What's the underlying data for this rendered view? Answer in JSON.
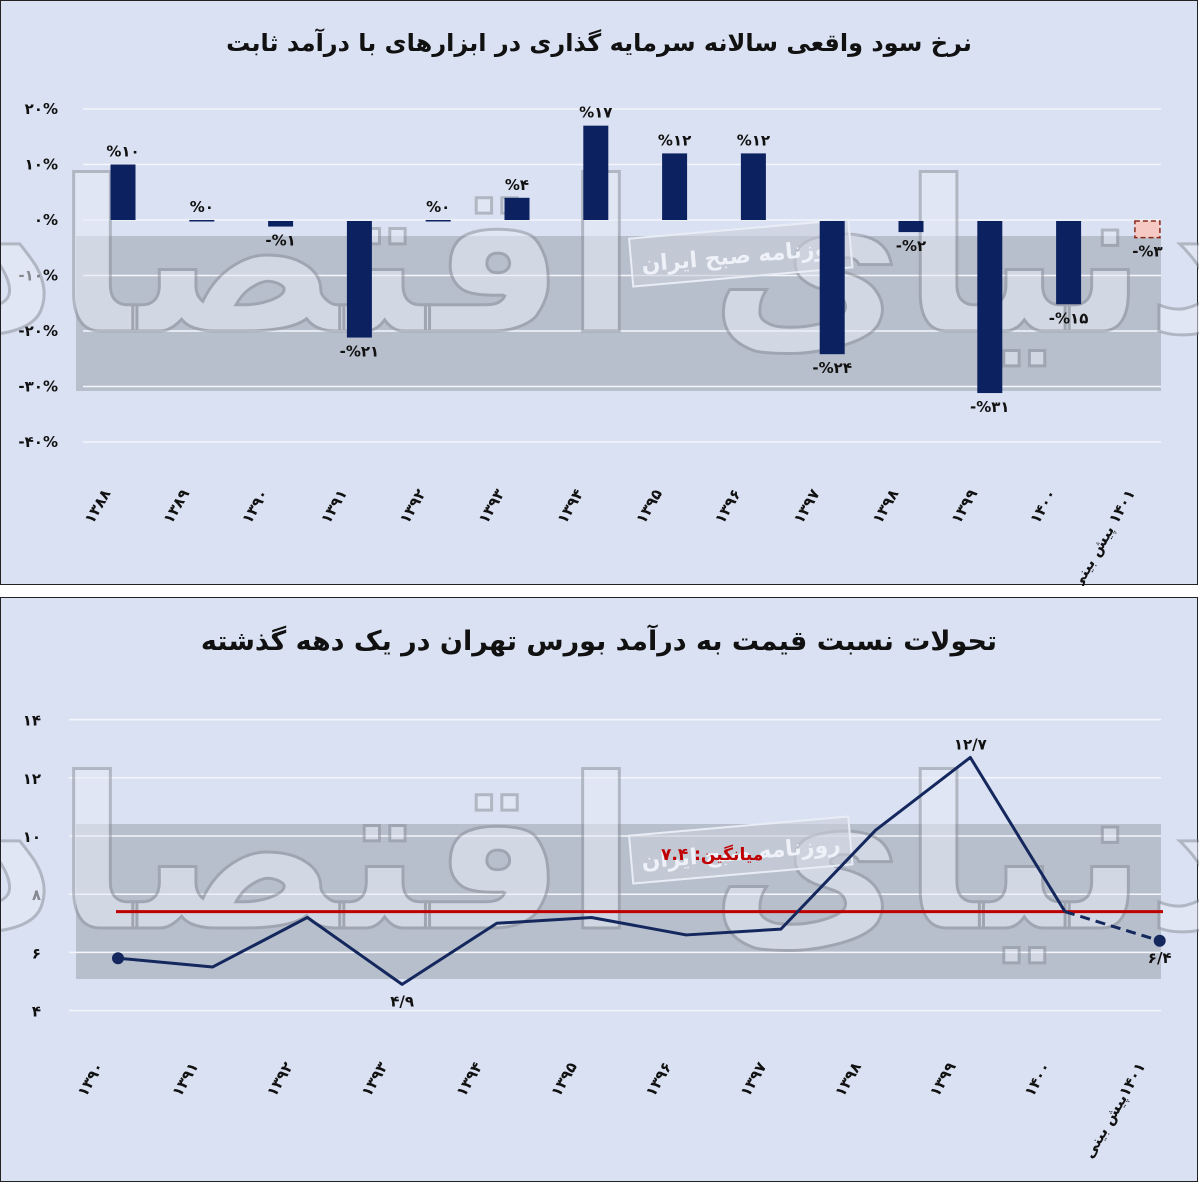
{
  "watermark": {
    "logo_text": "دنیای اقتصاد",
    "stamp_text": "روزنامه صبح ایران"
  },
  "colors": {
    "panel_bg": "#dae1f2",
    "bar": "#0c2160",
    "forecast_bar_fill": "#f7c9c4",
    "forecast_bar_border": "#8b2a1a",
    "line": "#14285e",
    "average_line": "#c00000",
    "shade_band": "#b8bfcc"
  },
  "chart_data": [
    {
      "type": "bar",
      "title": "نرخ سود واقعی سالانه سرمایه گذاری در ابزارهای با درآمد ثابت",
      "xlabel": "",
      "ylabel": "",
      "ylim": [
        -40,
        20
      ],
      "grid": true,
      "yticks": [
        "۲۰%",
        "۱۰%",
        "۰%",
        "-۱۰%",
        "-۲۰%",
        "-۳۰%",
        "-۴۰%"
      ],
      "ytick_values": [
        20,
        10,
        0,
        -10,
        -20,
        -30,
        -40
      ],
      "categories": [
        "۱۳۸۸",
        "۱۳۸۹",
        "۱۳۹۰",
        "۱۳۹۱",
        "۱۳۹۲",
        "۱۳۹۳",
        "۱۳۹۴",
        "۱۳۹۵",
        "۱۳۹۶",
        "۱۳۹۷",
        "۱۳۹۸",
        "۱۳۹۹",
        "۱۴۰۰",
        "۱۴۰۱ پیش بینی"
      ],
      "values": [
        10,
        0,
        -1,
        -21,
        0,
        4,
        17,
        12,
        12,
        -24,
        -2,
        -31,
        -15,
        -3
      ],
      "data_labels": [
        "%۱۰",
        "%۰",
        "-%۱",
        "-%۲۱",
        "%۰",
        "%۴",
        "%۱۷",
        "%۱۲",
        "%۱۲",
        "-%۲۴",
        "-%۲",
        "-%۳۱",
        "-%۱۵",
        "-%۳"
      ],
      "forecast_index": 13
    },
    {
      "type": "line",
      "title": "تحولات نسبت قیمت به درآمد بورس تهران در یک دهه گذشته",
      "xlabel": "",
      "ylabel": "",
      "ylim": [
        4,
        14
      ],
      "grid": true,
      "yticks": [
        "۱۴",
        "۱۲",
        "۱۰",
        "۸",
        "۶",
        "۴"
      ],
      "ytick_values": [
        14,
        12,
        10,
        8,
        6,
        4
      ],
      "categories": [
        "۱۳۹۰",
        "۱۳۹۱",
        "۱۳۹۲",
        "۱۳۹۳",
        "۱۳۹۴",
        "۱۳۹۵",
        "۱۳۹۶",
        "۱۳۹۷",
        "۱۳۹۸",
        "۱۳۹۹",
        "۱۴۰۰",
        "۱۴۰۱پیش بینی"
      ],
      "values": [
        5.8,
        5.5,
        7.2,
        4.9,
        7.0,
        7.2,
        6.6,
        6.8,
        10.2,
        12.7,
        7.4,
        6.4
      ],
      "annotations": [
        {
          "index": 3,
          "text": "۴/۹"
        },
        {
          "index": 9,
          "text": "۱۲/۷"
        },
        {
          "index": 11,
          "text": "۶/۴"
        }
      ],
      "average": {
        "value": 7.4,
        "label": "میانگین: ۷.۴"
      },
      "forecast_from_index": 10
    }
  ]
}
